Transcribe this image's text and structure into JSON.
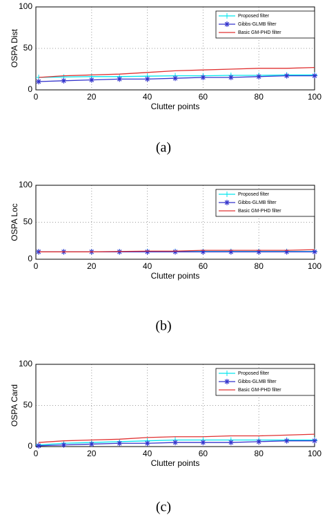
{
  "chart_data": [
    {
      "type": "line",
      "caption": "(a)",
      "xlabel": "Clutter points",
      "ylabel": "OSPA Dist",
      "x": [
        1,
        10,
        20,
        30,
        40,
        50,
        60,
        70,
        80,
        90,
        100
      ],
      "xlim": [
        0,
        100
      ],
      "xticks": [
        0,
        20,
        40,
        60,
        80,
        100
      ],
      "ylim": [
        0,
        100
      ],
      "yticks": [
        0,
        50,
        100
      ],
      "grid": true,
      "legend": "upper right",
      "series": [
        {
          "name": "Proposed filter",
          "color": "#00e5ee",
          "marker": "+",
          "values": [
            15,
            15.5,
            16,
            16,
            16.5,
            17,
            17,
            17.5,
            17.5,
            18,
            18
          ]
        },
        {
          "name": "Gibbs-GLMB filter",
          "color": "#3333cc",
          "marker": "*",
          "values": [
            10,
            11,
            12,
            13,
            13,
            14,
            15,
            15,
            16,
            17,
            17
          ]
        },
        {
          "name": "Basic GM-PHD filter",
          "color": "#e03030",
          "marker": "none",
          "values": [
            15,
            17,
            18,
            19,
            21,
            23,
            24,
            25,
            26,
            26,
            27
          ]
        }
      ]
    },
    {
      "type": "line",
      "caption": "(b)",
      "xlabel": "Clutter points",
      "ylabel": "OSPA Loc",
      "x": [
        1,
        10,
        20,
        30,
        40,
        50,
        60,
        70,
        80,
        90,
        100
      ],
      "xlim": [
        0,
        100
      ],
      "xticks": [
        0,
        20,
        40,
        60,
        80,
        100
      ],
      "ylim": [
        0,
        100
      ],
      "yticks": [
        0,
        50,
        100
      ],
      "grid": true,
      "legend": "upper right",
      "series": [
        {
          "name": "Proposed filter",
          "color": "#00e5ee",
          "marker": "+",
          "values": [
            10,
            10,
            10,
            10,
            10.5,
            10.5,
            10.5,
            10.5,
            10.5,
            10.5,
            10.5
          ]
        },
        {
          "name": "Gibbs-GLMB filter",
          "color": "#3333cc",
          "marker": "*",
          "values": [
            10,
            10,
            10,
            10,
            10,
            10,
            10,
            10,
            10,
            10,
            10
          ]
        },
        {
          "name": "Basic GM-PHD filter",
          "color": "#e03030",
          "marker": "none",
          "values": [
            10,
            10,
            10,
            10.5,
            11,
            11,
            12,
            12,
            12,
            12,
            13
          ]
        }
      ]
    },
    {
      "type": "line",
      "caption": "(c)",
      "xlabel": "Clutter points",
      "ylabel": "OSPA Card",
      "x": [
        1,
        10,
        20,
        30,
        40,
        50,
        60,
        70,
        80,
        90,
        100
      ],
      "xlim": [
        0,
        100
      ],
      "xticks": [
        0,
        20,
        40,
        60,
        80,
        100
      ],
      "ylim": [
        0,
        100
      ],
      "yticks": [
        0,
        50,
        100
      ],
      "grid": true,
      "legend": "upper right",
      "series": [
        {
          "name": "Proposed filter",
          "color": "#00e5ee",
          "marker": "+",
          "values": [
            2,
            4,
            5,
            6,
            7,
            8,
            8,
            8,
            8,
            8,
            8
          ]
        },
        {
          "name": "Gibbs-GLMB filter",
          "color": "#3333cc",
          "marker": "*",
          "values": [
            1,
            2,
            3,
            4,
            4,
            5,
            5,
            5,
            6,
            7,
            7
          ]
        },
        {
          "name": "Basic GM-PHD filter",
          "color": "#e03030",
          "marker": "none",
          "values": [
            5,
            7,
            8,
            9,
            11,
            12,
            12,
            13,
            13,
            14,
            15
          ]
        }
      ]
    }
  ]
}
